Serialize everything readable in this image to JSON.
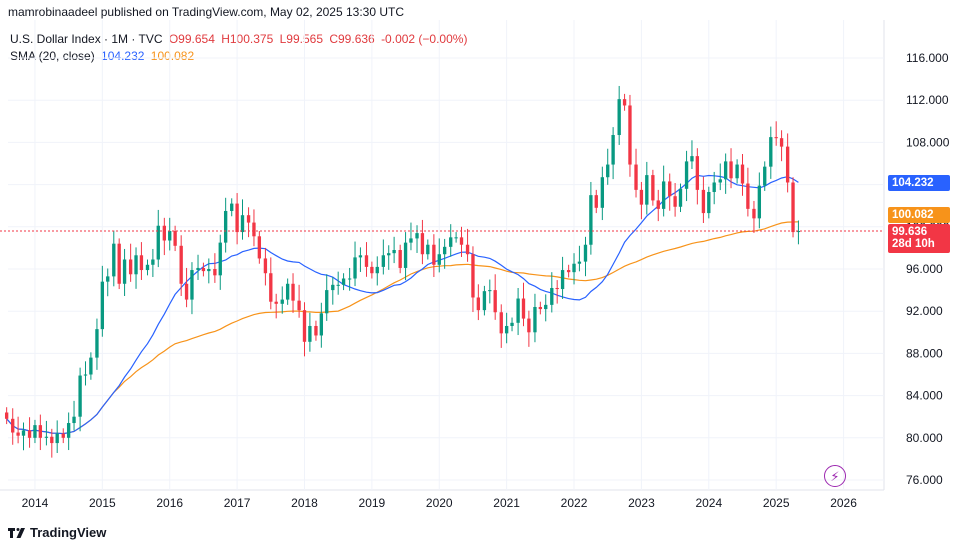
{
  "header": {
    "published": "mamrobinaadeel published on TradingView.com, May 02, 2025 13:30 UTC"
  },
  "legend": {
    "symbol": "U.S. Dollar Index · 1M · TVC",
    "o": "O99.654",
    "h": "H100.375",
    "l": "L99.565",
    "c": "C99.636",
    "chg": "-0.002 (−0.00%)",
    "sma_label": "SMA (20, close)",
    "sma_fast": "104.232",
    "sma_slow": "100.082"
  },
  "price_tags": {
    "sma_fast": "104.232",
    "sma_slow": "100.082",
    "last": "99.636",
    "countdown": "28d 10h"
  },
  "footer": {
    "brand": "TradingView"
  },
  "colors": {
    "up": "#089981",
    "down": "#f23645",
    "sma_fast": "#2962ff",
    "sma_slow": "#f7931a"
  },
  "chart_data": {
    "type": "candlestick",
    "interval": "1M",
    "y_ticks": [
      "116.000",
      "112.000",
      "108.000",
      "104.000",
      "100.000",
      "96.000",
      "92.000",
      "88.000",
      "84.000",
      "80.000",
      "76.000"
    ],
    "x_ticks": [
      "2014",
      "2015",
      "2016",
      "2017",
      "2018",
      "2019",
      "2020",
      "2021",
      "2022",
      "2023",
      "2024",
      "2025",
      "2026"
    ],
    "ylim": [
      75,
      118.5
    ],
    "xlim": [
      2013.6,
      2026.6
    ],
    "closes": [
      [
        2013.58,
        81.8
      ],
      [
        2013.67,
        80.5
      ],
      [
        2013.75,
        80.2
      ],
      [
        2013.83,
        80.7
      ],
      [
        2013.92,
        80.0
      ],
      [
        2014.0,
        81.2
      ],
      [
        2014.08,
        80.0
      ],
      [
        2014.17,
        80.1
      ],
      [
        2014.25,
        79.5
      ],
      [
        2014.33,
        80.4
      ],
      [
        2014.42,
        80.0
      ],
      [
        2014.5,
        81.4
      ],
      [
        2014.58,
        82.0
      ],
      [
        2014.67,
        85.9
      ],
      [
        2014.75,
        86.0
      ],
      [
        2014.83,
        87.6
      ],
      [
        2014.92,
        90.3
      ],
      [
        2015.0,
        94.8
      ],
      [
        2015.08,
        95.3
      ],
      [
        2015.17,
        98.4
      ],
      [
        2015.25,
        94.6
      ],
      [
        2015.33,
        96.9
      ],
      [
        2015.42,
        95.5
      ],
      [
        2015.5,
        97.3
      ],
      [
        2015.58,
        95.9
      ],
      [
        2015.67,
        96.4
      ],
      [
        2015.75,
        96.9
      ],
      [
        2015.83,
        100.1
      ],
      [
        2015.92,
        98.7
      ],
      [
        2016.0,
        99.6
      ],
      [
        2016.08,
        98.2
      ],
      [
        2016.17,
        94.6
      ],
      [
        2016.25,
        93.1
      ],
      [
        2016.33,
        95.9
      ],
      [
        2016.42,
        96.1
      ],
      [
        2016.5,
        95.8
      ],
      [
        2016.58,
        96.0
      ],
      [
        2016.67,
        95.4
      ],
      [
        2016.75,
        98.5
      ],
      [
        2016.83,
        101.5
      ],
      [
        2016.92,
        102.2
      ],
      [
        2017.0,
        99.5
      ],
      [
        2017.08,
        101.1
      ],
      [
        2017.17,
        100.4
      ],
      [
        2017.25,
        99.1
      ],
      [
        2017.33,
        97.0
      ],
      [
        2017.42,
        95.6
      ],
      [
        2017.5,
        92.9
      ],
      [
        2017.58,
        92.7
      ],
      [
        2017.67,
        93.1
      ],
      [
        2017.75,
        94.6
      ],
      [
        2017.83,
        93.0
      ],
      [
        2017.92,
        92.1
      ],
      [
        2018.0,
        89.1
      ],
      [
        2018.08,
        90.6
      ],
      [
        2018.17,
        89.7
      ],
      [
        2018.25,
        91.8
      ],
      [
        2018.33,
        94.0
      ],
      [
        2018.42,
        94.5
      ],
      [
        2018.5,
        94.5
      ],
      [
        2018.58,
        95.1
      ],
      [
        2018.67,
        95.1
      ],
      [
        2018.75,
        97.1
      ],
      [
        2018.83,
        97.3
      ],
      [
        2018.92,
        96.2
      ],
      [
        2019.0,
        95.6
      ],
      [
        2019.08,
        96.2
      ],
      [
        2019.17,
        97.3
      ],
      [
        2019.25,
        97.5
      ],
      [
        2019.33,
        97.8
      ],
      [
        2019.42,
        96.1
      ],
      [
        2019.5,
        98.5
      ],
      [
        2019.58,
        98.9
      ],
      [
        2019.67,
        99.4
      ],
      [
        2019.75,
        97.4
      ],
      [
        2019.83,
        98.3
      ],
      [
        2019.92,
        96.4
      ],
      [
        2020.0,
        97.4
      ],
      [
        2020.08,
        98.1
      ],
      [
        2020.17,
        99.0
      ],
      [
        2020.25,
        99.0
      ],
      [
        2020.33,
        98.3
      ],
      [
        2020.42,
        97.4
      ],
      [
        2020.5,
        93.3
      ],
      [
        2020.58,
        92.1
      ],
      [
        2020.67,
        93.9
      ],
      [
        2020.75,
        94.0
      ],
      [
        2020.83,
        91.9
      ],
      [
        2020.92,
        89.9
      ],
      [
        2021.0,
        90.6
      ],
      [
        2021.08,
        90.9
      ],
      [
        2021.17,
        93.2
      ],
      [
        2021.25,
        91.3
      ],
      [
        2021.33,
        90.0
      ],
      [
        2021.42,
        92.4
      ],
      [
        2021.5,
        92.2
      ],
      [
        2021.58,
        92.6
      ],
      [
        2021.67,
        94.2
      ],
      [
        2021.75,
        94.1
      ],
      [
        2021.83,
        95.9
      ],
      [
        2021.92,
        95.7
      ],
      [
        2022.0,
        96.5
      ],
      [
        2022.08,
        96.7
      ],
      [
        2022.17,
        98.3
      ],
      [
        2022.25,
        103.0
      ],
      [
        2022.33,
        101.8
      ],
      [
        2022.42,
        104.7
      ],
      [
        2022.5,
        105.9
      ],
      [
        2022.58,
        108.7
      ],
      [
        2022.67,
        112.1
      ],
      [
        2022.75,
        111.5
      ],
      [
        2022.83,
        105.9
      ],
      [
        2022.92,
        103.5
      ],
      [
        2023.0,
        102.1
      ],
      [
        2023.08,
        104.9
      ],
      [
        2023.17,
        102.5
      ],
      [
        2023.25,
        101.7
      ],
      [
        2023.33,
        104.3
      ],
      [
        2023.42,
        102.9
      ],
      [
        2023.5,
        101.9
      ],
      [
        2023.58,
        103.6
      ],
      [
        2023.67,
        106.2
      ],
      [
        2023.75,
        106.7
      ],
      [
        2023.83,
        103.5
      ],
      [
        2023.92,
        101.3
      ],
      [
        2024.0,
        103.3
      ],
      [
        2024.08,
        104.2
      ],
      [
        2024.17,
        104.5
      ],
      [
        2024.25,
        106.2
      ],
      [
        2024.33,
        104.6
      ],
      [
        2024.42,
        105.9
      ],
      [
        2024.5,
        104.1
      ],
      [
        2024.58,
        101.7
      ],
      [
        2024.67,
        100.8
      ],
      [
        2024.75,
        103.9
      ],
      [
        2024.83,
        105.7
      ],
      [
        2024.92,
        108.5
      ],
      [
        2025.0,
        108.4
      ],
      [
        2025.08,
        107.6
      ],
      [
        2025.17,
        104.2
      ],
      [
        2025.25,
        99.5
      ],
      [
        2025.33,
        99.6
      ]
    ],
    "series": [
      {
        "name": "SMA (20, close)",
        "role": "fast",
        "last": 104.232
      },
      {
        "name": "SMA (20, close)",
        "role": "slow",
        "last": 100.082
      }
    ]
  }
}
